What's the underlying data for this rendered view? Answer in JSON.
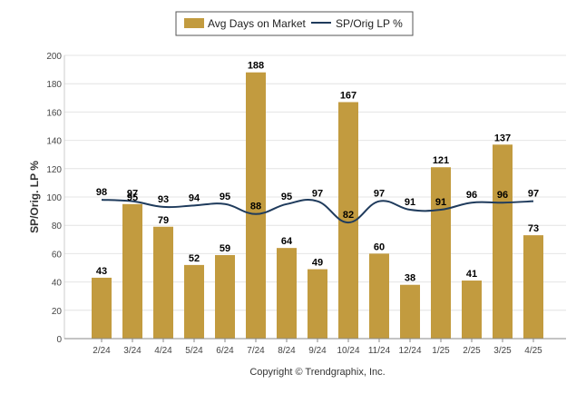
{
  "chart_data": {
    "type": "bar",
    "categories": [
      "2/24",
      "3/24",
      "4/24",
      "5/24",
      "6/24",
      "7/24",
      "8/24",
      "9/24",
      "10/24",
      "11/24",
      "12/24",
      "1/25",
      "2/25",
      "3/25",
      "4/25"
    ],
    "series": [
      {
        "name": "Avg Days on Market",
        "type": "bar",
        "color": "#c29b3f",
        "values": [
          43,
          95,
          79,
          52,
          59,
          188,
          64,
          49,
          167,
          60,
          38,
          121,
          41,
          137,
          73
        ]
      },
      {
        "name": "SP/Orig LP %",
        "type": "line",
        "color": "#1f3b5c",
        "values": [
          98,
          97,
          93,
          94,
          95,
          88,
          95,
          97,
          82,
          97,
          91,
          91,
          96,
          96,
          97
        ]
      }
    ],
    "title": "",
    "xlabel": "",
    "ylabel": "SP/Orig. LP %",
    "ylim": [
      0,
      200
    ],
    "yticks": [
      0,
      20,
      40,
      60,
      80,
      100,
      120,
      140,
      160,
      180,
      200
    ],
    "grid": true,
    "legend_position": "top-center"
  },
  "footer": {
    "copyright": "Copyright © Trendgraphix, Inc."
  }
}
